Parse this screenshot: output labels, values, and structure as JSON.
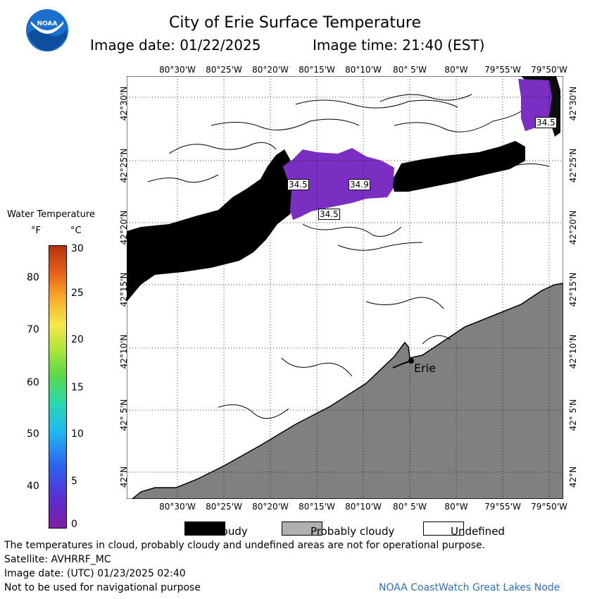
{
  "header": {
    "title": "City of Erie Surface Temperature",
    "date_line": "Image date: 01/22/2025",
    "time_line": "Image time: 21:40 (EST)"
  },
  "map": {
    "lon_labels": [
      "80°30'W",
      "80°25'W",
      "80°20'W",
      "80°15'W",
      "80°10'W",
      "80° 5'W",
      "80°W",
      "79°55'W",
      "79°50'W"
    ],
    "lat_labels": [
      "42°30'N",
      "42°25'N",
      "42°20'N",
      "42°15'N",
      "42°10'N",
      "42° 5'N",
      "42°N"
    ],
    "temp_labels": [
      "34.5",
      "34.9",
      "34.5",
      "34.5"
    ],
    "city": "Erie",
    "colors": {
      "cloud": "#000000",
      "land": "#808080",
      "water_temp": "#7a2fc2",
      "undefined": "#ffffff"
    }
  },
  "scale": {
    "title": "Water Temperature",
    "unit_f": "°F",
    "unit_c": "°C",
    "f_ticks": [
      "80",
      "70",
      "60",
      "50",
      "40"
    ],
    "c_ticks": [
      "30",
      "25",
      "20",
      "15",
      "10",
      "5",
      "0"
    ]
  },
  "legend": {
    "cloudy": "Cloudy",
    "probably_cloudy": "Probably cloudy",
    "undefined": "Undefined"
  },
  "footer": {
    "line1": "The temperatures in cloud, probably cloudy and undefined areas are not for operational purpose.",
    "line2": "Satellite: AVHRRF_MC",
    "line3": "Image date: (UTC) 01/23/2025  02:40",
    "line4": "Not to be used for navigational purpose",
    "credit": "NOAA CoastWatch Great Lakes Node"
  }
}
